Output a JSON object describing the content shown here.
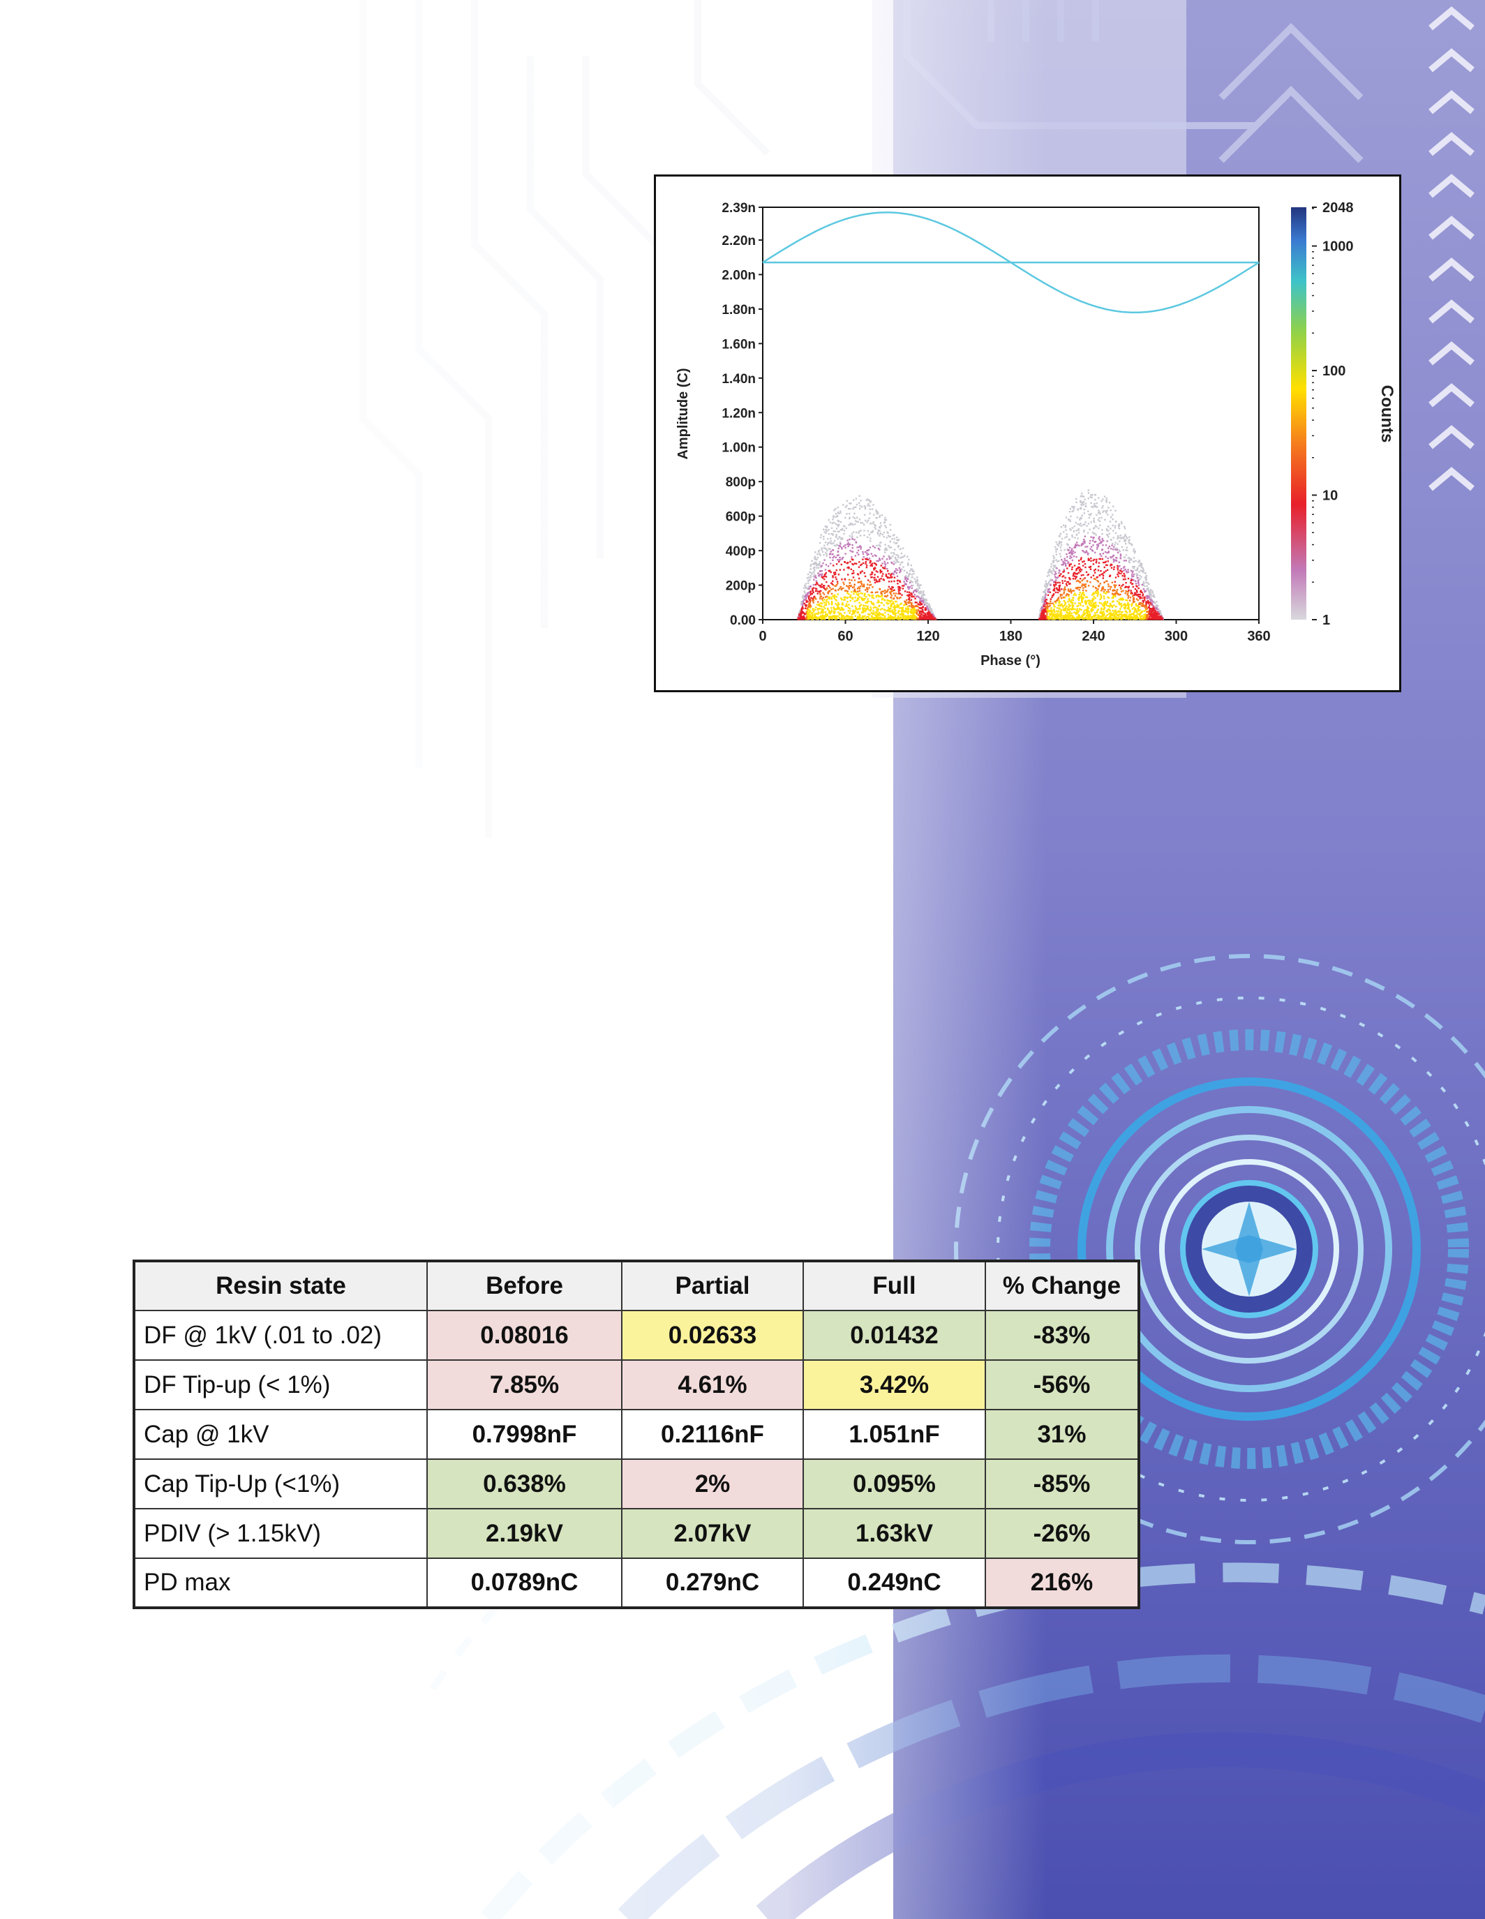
{
  "chart_data": {
    "type": "heatmap",
    "title": "",
    "xlabel": "Phase (°)",
    "ylabel": "Amplitude (C)",
    "colorbar_label": "Counts",
    "x_ticks": [
      "0",
      "60",
      "120",
      "180",
      "240",
      "300",
      "360"
    ],
    "y_ticks": [
      "0.00",
      "200p",
      "400p",
      "600p",
      "800p",
      "1.00n",
      "1.20n",
      "1.40n",
      "1.60n",
      "1.80n",
      "2.00n",
      "2.20n",
      "2.39n"
    ],
    "colorbar_ticks": [
      "1",
      "10",
      "100",
      "1000",
      "2048"
    ],
    "xlim": [
      0,
      360
    ],
    "ylim": [
      0,
      2.39
    ],
    "y_unit_note": "nC",
    "colorbar_range": [
      1,
      2048
    ],
    "colorbar_scale": "log",
    "reference_line_level": 2.07,
    "reference_sine": {
      "offset": 2.07,
      "amplitude": 0.29
    },
    "clusters": [
      {
        "phase_center": 62,
        "phase_span": [
          25,
          125
        ],
        "peak_amplitude": 0.72
      },
      {
        "phase_center": 245,
        "phase_span": [
          200,
          290
        ],
        "peak_amplitude": 0.75
      }
    ],
    "colors": {
      "line": "#5bc8e0",
      "low": "#c8c8d0",
      "mid": "#e8202a",
      "high": "#ffe000",
      "top": "#2b3f8c"
    }
  },
  "table": {
    "headers": [
      "Resin state",
      "Before",
      "Partial",
      "Full",
      "% Change"
    ],
    "rows": [
      {
        "label": "DF @ 1kV (.01 to .02)",
        "cells": [
          {
            "v": "0.08016",
            "c": "red"
          },
          {
            "v": "0.02633",
            "c": "yellow"
          },
          {
            "v": "0.01432",
            "c": "green"
          },
          {
            "v": "-83%",
            "c": "green"
          }
        ]
      },
      {
        "label": "DF Tip-up (< 1%)",
        "cells": [
          {
            "v": "7.85%",
            "c": "red"
          },
          {
            "v": "4.61%",
            "c": "red"
          },
          {
            "v": "3.42%",
            "c": "yellow"
          },
          {
            "v": "-56%",
            "c": "green"
          }
        ]
      },
      {
        "label": "Cap @ 1kV",
        "cells": [
          {
            "v": "0.7998nF",
            "c": "white"
          },
          {
            "v": "0.2116nF",
            "c": "white"
          },
          {
            "v": "1.051nF",
            "c": "white"
          },
          {
            "v": "31%",
            "c": "green"
          }
        ]
      },
      {
        "label": "Cap Tip-Up (<1%)",
        "cells": [
          {
            "v": "0.638%",
            "c": "green"
          },
          {
            "v": "2%",
            "c": "red"
          },
          {
            "v": "0.095%",
            "c": "green"
          },
          {
            "v": "-85%",
            "c": "green"
          }
        ]
      },
      {
        "label": "PDIV (> 1.15kV)",
        "cells": [
          {
            "v": "2.19kV",
            "c": "green"
          },
          {
            "v": "2.07kV",
            "c": "green"
          },
          {
            "v": "1.63kV",
            "c": "green"
          },
          {
            "v": "-26%",
            "c": "green"
          }
        ]
      },
      {
        "label": "PD max",
        "cells": [
          {
            "v": "0.0789nC",
            "c": "white"
          },
          {
            "v": "0.279nC",
            "c": "white"
          },
          {
            "v": "0.249nC",
            "c": "white"
          },
          {
            "v": "216%",
            "c": "red"
          }
        ]
      }
    ]
  }
}
